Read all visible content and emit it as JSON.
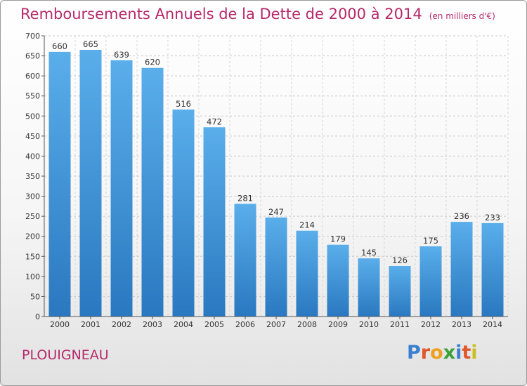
{
  "title": "Remboursements Annuels de la Dette de 2000 à 2014",
  "unit": "(en milliers d'€)",
  "commune": "PLOUIGNEAU",
  "logo": {
    "text": "Proxiti",
    "letters": [
      {
        "char": "P",
        "color": "#3a7fd0"
      },
      {
        "char": "r",
        "color": "#e0572a"
      },
      {
        "char": "o",
        "color": "#f0a020"
      },
      {
        "char": "x",
        "color": "#3da13a"
      },
      {
        "char": "i",
        "color": "#3a7fd0"
      },
      {
        "char": "t",
        "color": "#e0572a"
      },
      {
        "char": "i",
        "color": "#c8c020"
      }
    ]
  },
  "colors": {
    "title": "#b5286a",
    "bar_top": "#5aaeea",
    "bar_bottom": "#2a78c0"
  },
  "chart_data": {
    "type": "bar",
    "categories": [
      "2000",
      "2001",
      "2002",
      "2003",
      "2004",
      "2005",
      "2006",
      "2007",
      "2008",
      "2009",
      "2010",
      "2011",
      "2012",
      "2013",
      "2014"
    ],
    "values": [
      660,
      665,
      639,
      620,
      516,
      472,
      281,
      247,
      214,
      179,
      145,
      126,
      175,
      236,
      233
    ],
    "ylim": [
      0,
      700
    ],
    "yticks": [
      0,
      50,
      100,
      150,
      200,
      250,
      300,
      350,
      400,
      450,
      500,
      550,
      600,
      650,
      700
    ],
    "grid": true,
    "data_labels": true
  }
}
